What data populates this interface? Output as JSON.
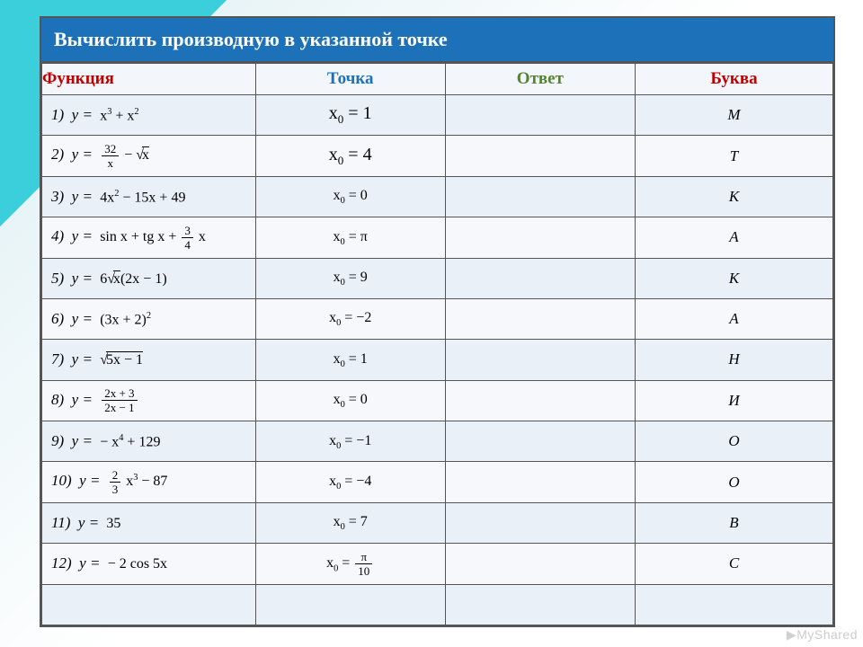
{
  "title": "Вычислить производную в указанной точке",
  "headers": {
    "func": "Функция",
    "point": "Точка",
    "ans": "Ответ",
    "letter": "Буква"
  },
  "header_colors": {
    "func": "#c00000",
    "point": "#1d71b8",
    "ans": "#548235",
    "letter": "#c00000"
  },
  "rows": [
    {
      "n": "1)",
      "func_html": "x<span class='sup'>3</span> + x<span class='sup'>2</span>",
      "point_html": "x<span class='sub'>0</span> = 1",
      "point_bold": true,
      "letter": "М"
    },
    {
      "n": "2)",
      "func_html": "<span class='frac'><span class='n'>32</span><span class='d'>x</span></span> − √<span class='sqrt'>x</span>",
      "point_html": "x<span class='sub'>0</span> = 4",
      "point_bold": true,
      "letter": "Т"
    },
    {
      "n": "3)",
      "func_html": "4x<span class='sup'>2</span> − 15x + 49",
      "point_html": "x<span class='sub'>0</span> = 0",
      "letter": "К"
    },
    {
      "n": "4)",
      "func_html": "sin x + tg x + <span class='frac'><span class='n'>3</span><span class='d'>4</span></span> x",
      "point_html": "x<span class='sub'>0</span> = π",
      "letter": "А"
    },
    {
      "n": "5)",
      "func_html": "6√<span class='sqrt'>x</span>(2x − 1)",
      "point_html": "x<span class='sub'>0</span> = 9",
      "letter": "К"
    },
    {
      "n": "6)",
      "func_html": "(3x + 2)<span class='sup'>2</span>",
      "point_html": "x<span class='sub'>0</span> = −2",
      "letter": "А"
    },
    {
      "n": "7)",
      "func_html": "√<span class='sqrt'>5x − 1</span>",
      "point_html": "x<span class='sub'>0</span> = 1",
      "letter": "Н"
    },
    {
      "n": "8)",
      "func_html": "<span class='frac'><span class='n'>2x + 3</span><span class='d'>2x − 1</span></span>",
      "point_html": "x<span class='sub'>0</span> = 0",
      "letter": "И"
    },
    {
      "n": "9)",
      "func_html": "− x<span class='sup'>4</span> + 129",
      "point_html": "x<span class='sub'>0</span> = −1",
      "letter": "О"
    },
    {
      "n": "10)",
      "func_html": "<span class='frac'><span class='n'>2</span><span class='d'>3</span></span> x<span class='sup'>3</span> − 87",
      "point_html": "x<span class='sub'>0</span> = −4",
      "letter": "О"
    },
    {
      "n": "11)",
      "func_html": "35",
      "point_html": "x<span class='sub'>0</span> = 7",
      "letter": "В"
    },
    {
      "n": "12)",
      "func_html": "− 2 cos 5x",
      "point_html": "x<span class='sub'>0</span> = <span class='frac'><span class='n'>π</span><span class='d'>10</span></span>",
      "letter": "С"
    },
    {
      "n": "",
      "func_html": "",
      "point_html": "",
      "letter": ""
    }
  ],
  "y_eq": "у =",
  "watermark": "MyShared"
}
